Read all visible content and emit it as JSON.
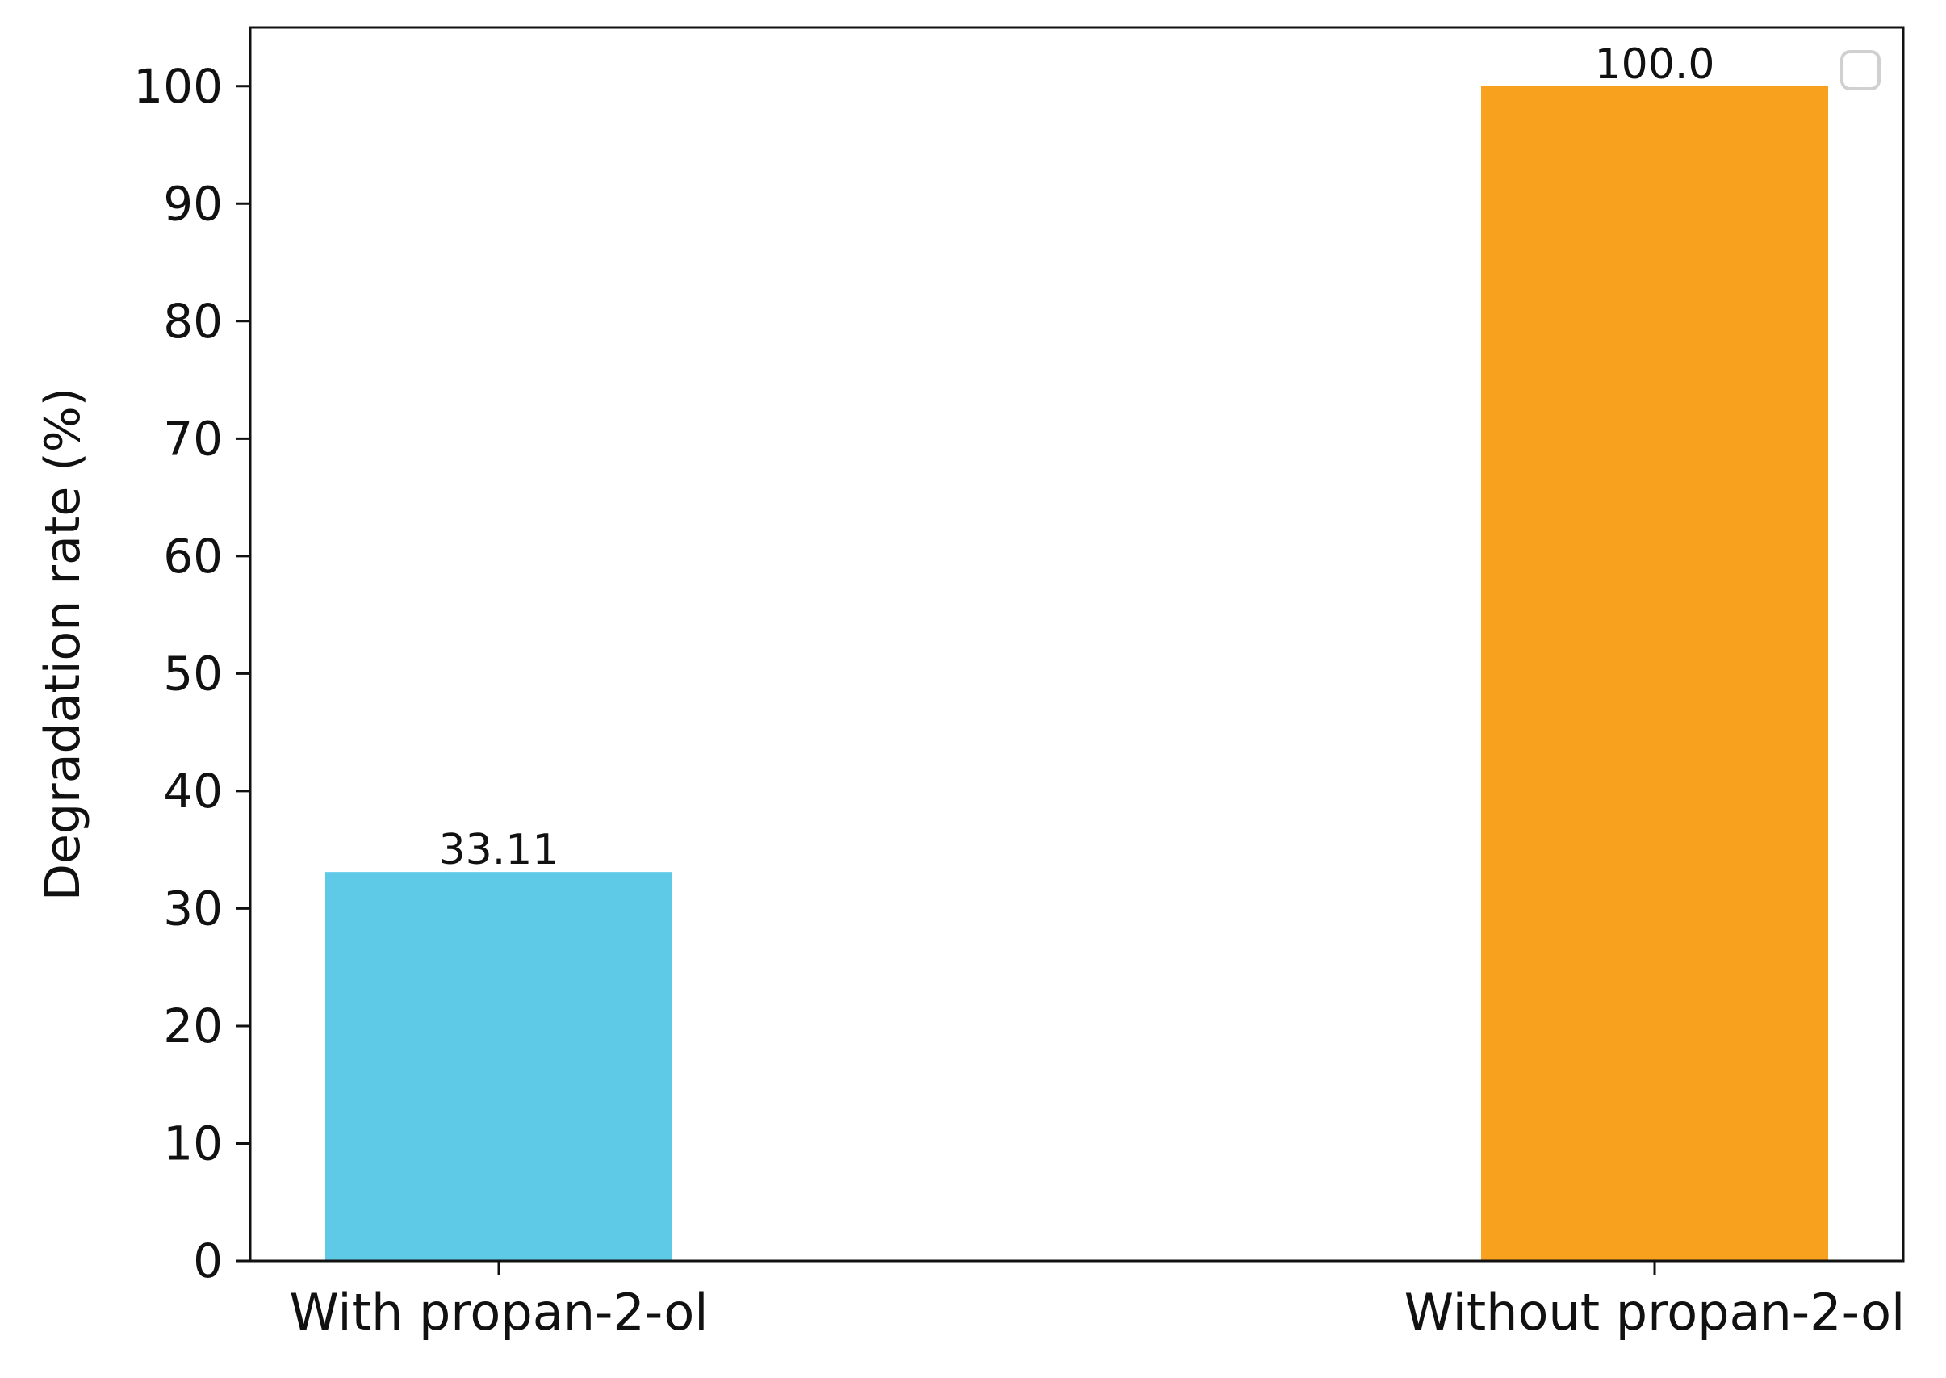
{
  "chart_data": {
    "type": "bar",
    "title": "",
    "xlabel": "",
    "ylabel": "Degradation rate (%)",
    "categories": [
      "With propan-2-ol",
      "Without propan-2-ol"
    ],
    "values": [
      33.11,
      100.0
    ],
    "data_labels": [
      "33.11",
      "100.0"
    ],
    "colors": [
      "#5ecae8",
      "#f7a11f"
    ],
    "ylim": [
      0,
      105
    ],
    "yticks": [
      0,
      10,
      20,
      30,
      40,
      50,
      60,
      70,
      80,
      90,
      100
    ],
    "grid": false,
    "legend": {
      "placement": "top-right",
      "entries": []
    }
  }
}
